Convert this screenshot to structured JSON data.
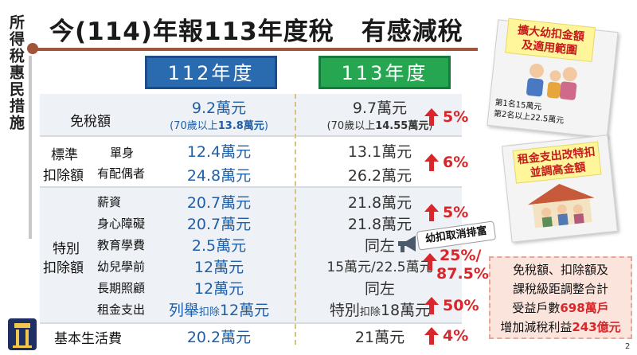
{
  "title": {
    "left": "今(114)年報113年度稅",
    "right": "有感減稅"
  },
  "vertical_label": "所得稅惠民措施",
  "year_headers": {
    "y112": "112年度",
    "y113": "113年度"
  },
  "rows": {
    "exemption": {
      "label": "免稅額",
      "v112": "9.2萬元",
      "v112_sub_prefix": "(70歲以上",
      "v112_sub_value": "13.8萬元",
      "v112_sub_suffix": ")",
      "v113": "9.7萬元",
      "v113_sub_prefix": "(70歲以上",
      "v113_sub_value": "14.55萬元",
      "v113_sub_suffix": ")",
      "pct": "5%"
    },
    "standard": {
      "label_top": "標準",
      "label_bottom": "扣除額",
      "single": "單身",
      "married": "有配偶者",
      "single_112": "12.4萬元",
      "single_113": "13.1萬元",
      "married_112": "24.8萬元",
      "married_113": "26.2萬元",
      "pct": "6%"
    },
    "special": {
      "label_top": "特別",
      "label_bottom": "扣除額",
      "salary": "薪資",
      "salary_112": "20.7萬元",
      "salary_113": "21.8萬元",
      "disability": "身心障礙",
      "disability_112": "20.7萬元",
      "disability_113": "21.8萬元",
      "pct_5": "5%",
      "education": "教育學費",
      "education_112": "2.5萬元",
      "education_113": "同左",
      "preschool": "幼兒學前",
      "preschool_112": "12萬元",
      "preschool_113": "15萬元/22.5萬元",
      "pct_preschool_a": "25%/",
      "pct_preschool_b": "87.5%",
      "longterm": "長期照顧",
      "longterm_112": "12萬元",
      "longterm_113": "同左",
      "rent": "租金支出",
      "rent_112_a": "列舉",
      "rent_112_b": "扣除",
      "rent_112_c": "12萬元",
      "rent_113_a": "特別",
      "rent_113_b": "扣除",
      "rent_113_c": "18萬元",
      "pct_rent": "50%"
    },
    "basic": {
      "label": "基本生活費",
      "v112": "20.2萬元",
      "v113": "21萬元",
      "pct": "4%"
    }
  },
  "callout_exclusion": "幼扣取消排富",
  "card1": {
    "note": "擴大幼扣金額\n及適用範圍",
    "line1": "第1名15萬元",
    "line2": "第2名以上22.5萬元"
  },
  "card2": {
    "note": "租金支出改特扣\n並調高金額"
  },
  "summary": {
    "line1": "免稅額、扣除額及",
    "line2": "課稅級距調整合計",
    "line3_prefix": "受益戶數",
    "line3_value": "698萬戶",
    "line4_prefix": "增加減稅利益",
    "line4_value": "243億元"
  },
  "page_number": "2",
  "colors": {
    "blue": "#2a6bb0",
    "green": "#27a651",
    "red": "#d8262a",
    "brown": "#a0553a"
  }
}
